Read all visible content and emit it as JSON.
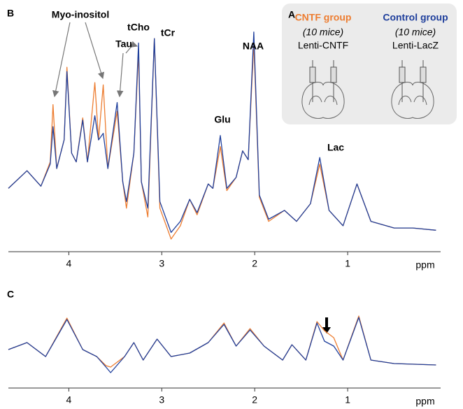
{
  "chart_data": [
    {
      "type": "line",
      "panel_label": "B",
      "x_label": "ppm",
      "xlim": [
        4.65,
        0
      ],
      "xticks": [
        4,
        3,
        2,
        1
      ],
      "ylim": [
        0,
        100
      ],
      "annotations": [
        "Myo-inositol",
        "Tau",
        "tCho",
        "tCr",
        "NAA",
        "Glu",
        "Lac"
      ],
      "x": [
        4.65,
        4.45,
        4.3,
        4.2,
        4.17,
        4.13,
        4.05,
        4.02,
        3.97,
        3.92,
        3.85,
        3.8,
        3.72,
        3.68,
        3.63,
        3.58,
        3.48,
        3.42,
        3.38,
        3.3,
        3.25,
        3.22,
        3.15,
        3.08,
        3.02,
        2.9,
        2.8,
        2.7,
        2.62,
        2.5,
        2.45,
        2.37,
        2.3,
        2.2,
        2.13,
        2.07,
        2.01,
        1.95,
        1.85,
        1.68,
        1.55,
        1.4,
        1.3,
        1.2,
        1.05,
        0.9,
        0.75,
        0.5,
        0.3,
        0.05
      ],
      "series": [
        {
          "name": "CNTF group",
          "color": "#ed7d31",
          "values": [
            24,
            32,
            25,
            36,
            62,
            33,
            46,
            79,
            40,
            36,
            56,
            36,
            72,
            46,
            71,
            33,
            59,
            27,
            15,
            40,
            86,
            27,
            11,
            92,
            15,
            1,
            7,
            19,
            12,
            26,
            24,
            43,
            23,
            29,
            41,
            37,
            90,
            20,
            9,
            14,
            9,
            17,
            35,
            14,
            7,
            26,
            9,
            6,
            6,
            5
          ]
        },
        {
          "name": "Control group",
          "color": "#1f3f9c",
          "values": [
            24,
            32,
            25,
            35,
            52,
            33,
            46,
            77,
            40,
            36,
            55,
            36,
            57,
            46,
            49,
            33,
            63,
            27,
            18,
            40,
            90,
            27,
            15,
            92,
            18,
            4,
            9,
            19,
            13,
            26,
            24,
            48,
            24,
            29,
            41,
            37,
            95,
            21,
            10,
            14,
            9,
            17,
            38,
            14,
            7,
            26,
            9,
            6,
            6,
            5
          ]
        }
      ],
      "legend": {
        "panel_label": "A",
        "groups": [
          {
            "subtitle": "(10 mice)",
            "vector": "Lenti-CNTF"
          },
          {
            "subtitle": "(10 mice)",
            "vector": "Lenti-LacZ"
          }
        ]
      }
    },
    {
      "type": "line",
      "panel_label": "C",
      "x_label": "ppm",
      "xlim": [
        4.65,
        0
      ],
      "xticks": [
        4,
        3,
        2,
        1
      ],
      "ylim": [
        0,
        100
      ],
      "x": [
        4.65,
        4.45,
        4.25,
        4.02,
        3.85,
        3.7,
        3.6,
        3.55,
        3.4,
        3.3,
        3.2,
        3.05,
        2.9,
        2.7,
        2.5,
        2.33,
        2.2,
        2.05,
        1.9,
        1.7,
        1.6,
        1.45,
        1.33,
        1.25,
        1.15,
        1.05,
        0.88,
        0.75,
        0.5,
        0.05
      ],
      "series": [
        {
          "color": "#ed7d31",
          "values": [
            40,
            50,
            30,
            85,
            40,
            30,
            17,
            15,
            30,
            50,
            25,
            55,
            30,
            35,
            50,
            78,
            45,
            70,
            45,
            25,
            47,
            25,
            80,
            67,
            57,
            25,
            88,
            25,
            20,
            18
          ]
        },
        {
          "color": "#1f3f9c",
          "values": [
            40,
            50,
            30,
            83,
            40,
            30,
            15,
            7,
            30,
            50,
            25,
            55,
            30,
            35,
            50,
            76,
            45,
            68,
            45,
            25,
            47,
            25,
            78,
            52,
            45,
            25,
            86,
            25,
            20,
            18
          ]
        }
      ]
    }
  ]
}
